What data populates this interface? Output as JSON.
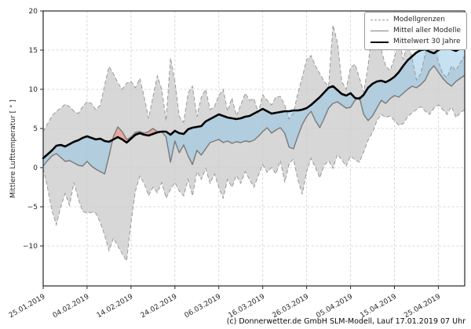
{
  "figure": {
    "ylabel": "Mittlere Lufttemperatur [ ° ]",
    "caption": "(c) Donnerwetter.de GmbH SLM-Modell, Lauf 17.01.2019 07 Uhr"
  },
  "legend": {
    "items": [
      {
        "label": "Modellgrenzen",
        "line": "dashed-thin-gray"
      },
      {
        "label": "Mittel aller Modelle",
        "line": "solid-thin-gray"
      },
      {
        "label": "Mittelwert 30 Jahre",
        "line": "solid-thick-black"
      }
    ]
  },
  "chart_data": {
    "type": "line",
    "title": "",
    "xlabel": "",
    "ylabel": "Mittlere Lufttemperatur [ ° ]",
    "x_unit": "days since 25.01.2019",
    "x_max": 96,
    "x_tick_positions": [
      0,
      10,
      20,
      30,
      40,
      50,
      60,
      70,
      80,
      90
    ],
    "x_tick_labels": [
      "25.01.2019",
      "04.02.2019",
      "14.02.2019",
      "24.02.2019",
      "06.03.2019",
      "16.03.2019",
      "26.03.2019",
      "05.04.2019",
      "15.04.2019",
      "25.04.2019"
    ],
    "ylim": [
      -15.1,
      20
    ],
    "yticks": [
      -10,
      -5,
      0,
      5,
      10,
      15,
      20
    ],
    "grid": "dashed, both axes",
    "legend_position": "upper right",
    "colors": {
      "band": "#d7d7d7",
      "bound_line": "#999999",
      "model_mean_line": "#7a7a7a",
      "mean30_line": "#000000",
      "below_fill": "rgba(140,195,230,0.5)",
      "above_fill": "rgba(240,125,100,0.5)",
      "grid": "#cccccc",
      "spine": "#262626"
    },
    "series": [
      {
        "name": "Modellgrenzen (obere Grenze)",
        "role": "upper_bound",
        "style": "dashed",
        "values": [
          4.6,
          5.6,
          6.6,
          7.2,
          7.6,
          8.1,
          7.8,
          7.2,
          6.9,
          7.8,
          8.4,
          8.2,
          7.4,
          8.0,
          10.5,
          12.9,
          12.0,
          10.8,
          10.0,
          10.8,
          11.0,
          10.2,
          11.4,
          9.0,
          6.3,
          9.0,
          11.7,
          10.0,
          6.0,
          14.0,
          11.0,
          6.5,
          5.8,
          9.5,
          10.4,
          6.5,
          9.0,
          10.0,
          7.4,
          7.8,
          9.2,
          10.0,
          7.2,
          8.9,
          6.6,
          8.0,
          9.5,
          8.6,
          8.8,
          7.0,
          9.3,
          8.6,
          8.0,
          9.0,
          9.1,
          8.0,
          6.2,
          7.0,
          9.5,
          11.5,
          13.8,
          14.3,
          13.0,
          12.0,
          11.0,
          10.4,
          18.2,
          16.0,
          11.0,
          10.0,
          12.8,
          13.2,
          11.5,
          9.6,
          13.0,
          18.0,
          16.0,
          15.0,
          13.0,
          12.4,
          14.0,
          16.5,
          13.8,
          16.0,
          14.0,
          11.2,
          12.0,
          14.5,
          16.6,
          16.0,
          13.5,
          12.0,
          11.5,
          13.0,
          12.4,
          13.4,
          14.3
        ]
      },
      {
        "name": "Modellgrenzen (untere Grenze)",
        "role": "lower_bound",
        "style": "dashed",
        "values": [
          -0.1,
          -2.6,
          -5.5,
          -7.3,
          -5.0,
          -3.3,
          -4.8,
          -1.9,
          -4.0,
          -5.6,
          -5.8,
          -5.7,
          -5.8,
          -7.0,
          -8.6,
          -10.6,
          -9.0,
          -10.0,
          -11.0,
          -11.9,
          -7.0,
          -3.0,
          -1.1,
          -2.0,
          -3.6,
          -2.5,
          -3.2,
          -1.9,
          -3.9,
          -2.8,
          -1.9,
          -3.0,
          -3.6,
          -1.5,
          -3.6,
          -0.5,
          -1.5,
          -0.1,
          -2.0,
          -0.8,
          -2.5,
          -3.9,
          -1.5,
          -2.5,
          -1.0,
          -2.0,
          -0.5,
          -1.5,
          -2.5,
          -1.0,
          0.4,
          -0.6,
          0.0,
          -0.8,
          0.9,
          -1.9,
          0.5,
          1.1,
          -1.5,
          -3.4,
          -0.5,
          1.2,
          0.0,
          -1.3,
          0.3,
          0.9,
          -0.1,
          1.7,
          1.0,
          0.2,
          1.5,
          1.0,
          0.7,
          2.0,
          3.5,
          4.5,
          6.0,
          6.8,
          6.4,
          6.6,
          6.0,
          5.4,
          5.6,
          6.5,
          7.0,
          7.4,
          7.8,
          7.2,
          6.8,
          7.6,
          8.0,
          7.4,
          6.8,
          7.8,
          6.4,
          7.0,
          7.4
        ]
      },
      {
        "name": "Mittel aller Modelle",
        "role": "model_mean",
        "style": "solid",
        "values": [
          0.2,
          0.9,
          1.5,
          1.8,
          1.3,
          0.8,
          0.9,
          0.6,
          0.3,
          0.2,
          0.8,
          0.2,
          -0.2,
          -0.5,
          -0.8,
          1.5,
          4.0,
          5.2,
          4.6,
          3.6,
          3.9,
          4.5,
          4.6,
          4.4,
          4.6,
          5.0,
          4.6,
          4.6,
          3.9,
          0.7,
          3.4,
          1.9,
          2.9,
          1.5,
          0.4,
          2.2,
          1.6,
          2.4,
          3.2,
          3.4,
          3.6,
          3.2,
          3.4,
          3.1,
          3.3,
          3.2,
          3.4,
          3.3,
          3.5,
          4.0,
          4.6,
          5.1,
          4.4,
          4.8,
          5.1,
          4.4,
          2.6,
          2.4,
          4.0,
          5.5,
          6.5,
          7.2,
          6.0,
          5.1,
          6.3,
          7.6,
          8.2,
          8.4,
          8.0,
          7.6,
          7.7,
          8.6,
          9.0,
          6.8,
          6.0,
          6.6,
          7.6,
          8.6,
          8.2,
          8.8,
          9.2,
          9.0,
          9.5,
          10.0,
          10.4,
          10.2,
          10.6,
          11.2,
          12.4,
          13.0,
          12.2,
          11.4,
          10.8,
          10.4,
          11.0,
          11.4,
          11.8
        ]
      },
      {
        "name": "Mittelwert 30 Jahre",
        "role": "mean_30y",
        "style": "solid-thick",
        "values": [
          1.2,
          1.7,
          2.2,
          2.8,
          2.9,
          2.7,
          3.0,
          3.3,
          3.5,
          3.8,
          4.0,
          3.8,
          3.6,
          3.7,
          3.4,
          3.3,
          3.6,
          3.9,
          3.6,
          3.2,
          3.7,
          4.2,
          4.4,
          4.2,
          4.1,
          4.3,
          4.5,
          4.6,
          4.6,
          4.2,
          4.7,
          4.4,
          4.3,
          4.9,
          5.1,
          5.2,
          5.3,
          5.9,
          6.2,
          6.5,
          6.8,
          6.6,
          6.4,
          6.3,
          6.2,
          6.3,
          6.5,
          6.6,
          6.9,
          7.2,
          7.5,
          7.2,
          6.9,
          7.0,
          7.1,
          7.2,
          7.2,
          7.3,
          7.3,
          7.4,
          7.6,
          8.0,
          8.5,
          9.0,
          9.6,
          10.2,
          10.4,
          9.9,
          9.4,
          9.2,
          9.5,
          8.9,
          8.8,
          9.3,
          10.2,
          10.7,
          11.0,
          11.1,
          10.9,
          11.2,
          11.6,
          12.2,
          13.0,
          13.7,
          14.2,
          14.7,
          15.0,
          15.1,
          14.8,
          14.6,
          15.0,
          15.3,
          15.4,
          15.1,
          14.9,
          15.2,
          15.3
        ]
      }
    ],
    "fills": [
      {
        "name": "Modellspanne",
        "between": [
          "upper_bound",
          "lower_bound"
        ],
        "color": "band"
      },
      {
        "name": "Modelle kaelter als 30-Jahre-Mittel",
        "between": [
          "mean_30y",
          "model_mean"
        ],
        "condition": "model_mean < mean_30y",
        "color": "below_fill"
      },
      {
        "name": "Modelle waermer als 30-Jahre-Mittel",
        "between": [
          "model_mean",
          "mean_30y"
        ],
        "condition": "model_mean > mean_30y",
        "color": "above_fill"
      }
    ]
  }
}
